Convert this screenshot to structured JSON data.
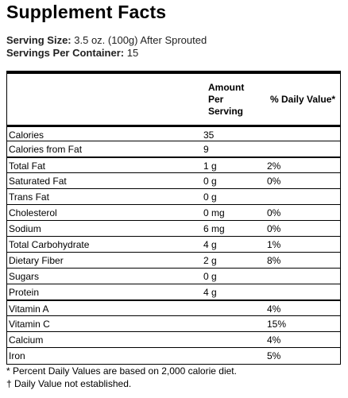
{
  "header": {
    "title": "Supplement Facts",
    "serving_size_label": "Serving Size:",
    "serving_size": "3.5 oz. (100g) After Sprouted",
    "servings_label": "Servings Per Container:",
    "servings": "15"
  },
  "table": {
    "columns": [
      "Amount Per Serving",
      "% Daily Value*"
    ],
    "rows": [
      [
        "Calories",
        "35",
        null
      ],
      [
        "Calories from Fat",
        "9",
        null
      ],
      [
        "Total Fat",
        "1 g",
        "2%"
      ],
      [
        "Saturated Fat",
        "0 g",
        "0%"
      ],
      [
        "Trans Fat",
        "0 g",
        null
      ],
      [
        "Cholesterol",
        "0 mg",
        "0%"
      ],
      [
        "Sodium",
        "6 mg",
        "0%"
      ],
      [
        "Total Carbohydrate",
        "4 g",
        "1%"
      ],
      [
        "Dietary Fiber",
        "2 g",
        "8%"
      ],
      [
        "Sugars",
        "0 g",
        null
      ],
      [
        "Protein",
        "4 g",
        null
      ],
      [
        "Vitamin A",
        null,
        "4%"
      ],
      [
        "Vitamin C",
        null,
        "15%"
      ],
      [
        "Calcium",
        null,
        "4%"
      ],
      [
        "Iron",
        null,
        "5%"
      ]
    ]
  },
  "footnotes": [
    "* Percent Daily Values are based on 2,000 calorie diet.",
    "† Daily Value not established."
  ]
}
